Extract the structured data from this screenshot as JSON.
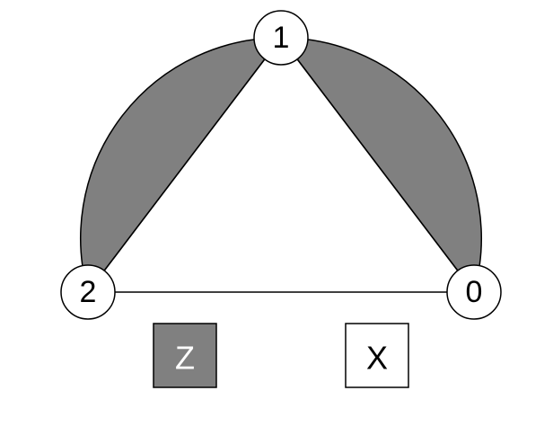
{
  "nodes": [
    {
      "label": "1"
    },
    {
      "label": "2"
    },
    {
      "label": "0"
    }
  ],
  "legend": [
    {
      "label": "Z",
      "fill": "#808080",
      "text_color": "#ffffff"
    },
    {
      "label": "X",
      "fill": "#ffffff",
      "text_color": "#000000"
    }
  ],
  "colors": {
    "shaded_region": "#808080",
    "stroke": "#000000",
    "node_fill": "#ffffff"
  }
}
